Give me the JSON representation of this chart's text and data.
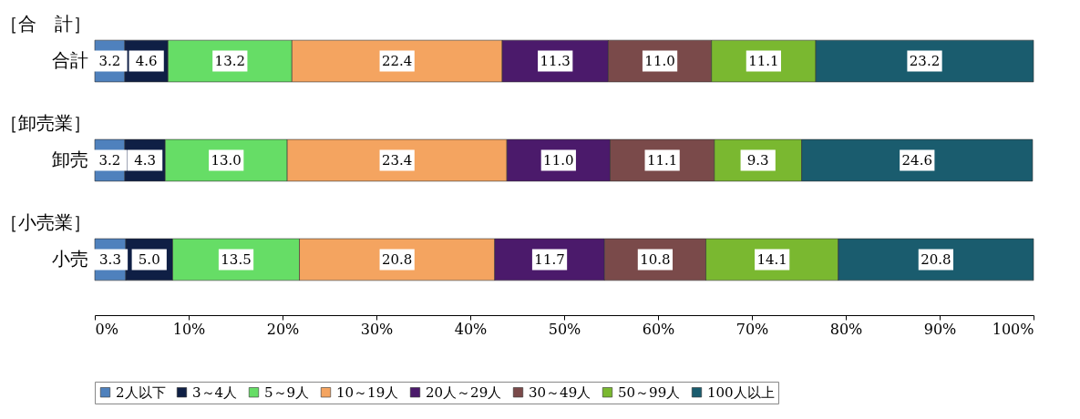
{
  "chart_data": {
    "type": "bar",
    "orientation": "horizontal",
    "stacked": true,
    "legend": "bottom",
    "grid": false,
    "categories": [
      "合計",
      "卸売",
      "小売"
    ],
    "annotations": [
      "［合　計］",
      "［卸売業］",
      "［小売業］"
    ],
    "xlim": [
      0,
      100
    ],
    "xticks": [
      {
        "value": 0,
        "label": "0%"
      },
      {
        "value": 10,
        "label": "10%"
      },
      {
        "value": 20,
        "label": "20%"
      },
      {
        "value": 30,
        "label": "30%"
      },
      {
        "value": 40,
        "label": "40%"
      },
      {
        "value": 50,
        "label": "50%"
      },
      {
        "value": 60,
        "label": "60%"
      },
      {
        "value": 70,
        "label": "70%"
      },
      {
        "value": 80,
        "label": "80%"
      },
      {
        "value": 90,
        "label": "90%"
      },
      {
        "value": 100,
        "label": "100%"
      }
    ],
    "series": [
      {
        "name": "2人以下",
        "color": "#4f81bd",
        "values": [
          3.2,
          3.2,
          3.3
        ],
        "value_labels": [
          "3.2",
          "3.2",
          "3.3"
        ]
      },
      {
        "name": "3～4人",
        "color": "#0f1f45",
        "values": [
          4.6,
          4.3,
          5.0
        ],
        "value_labels": [
          "4.6",
          "4.3",
          "5.0"
        ]
      },
      {
        "name": "5～9人",
        "color": "#66dd66",
        "values": [
          13.2,
          13.0,
          13.5
        ],
        "value_labels": [
          "13.2",
          "13.0",
          "13.5"
        ]
      },
      {
        "name": "10～19人",
        "color": "#f4a460",
        "values": [
          22.4,
          23.4,
          20.8
        ],
        "value_labels": [
          "22.4",
          "23.4",
          "20.8"
        ]
      },
      {
        "name": "20人～29人",
        "color": "#4b1a6b",
        "values": [
          11.3,
          11.0,
          11.7
        ],
        "value_labels": [
          "11.3",
          "11.0",
          "11.7"
        ]
      },
      {
        "name": "30～49人",
        "color": "#7a4a4a",
        "values": [
          11.0,
          11.1,
          10.8
        ],
        "value_labels": [
          "11.0",
          "11.1",
          "10.8"
        ]
      },
      {
        "name": "50～99人",
        "color": "#7ab830",
        "values": [
          11.1,
          9.3,
          14.1
        ],
        "value_labels": [
          "11.1",
          "9.3",
          "14.1"
        ]
      },
      {
        "name": "100人以上",
        "color": "#1a5c6e",
        "values": [
          23.2,
          24.6,
          20.8
        ],
        "value_labels": [
          "23.2",
          "24.6",
          "20.8"
        ]
      }
    ]
  }
}
